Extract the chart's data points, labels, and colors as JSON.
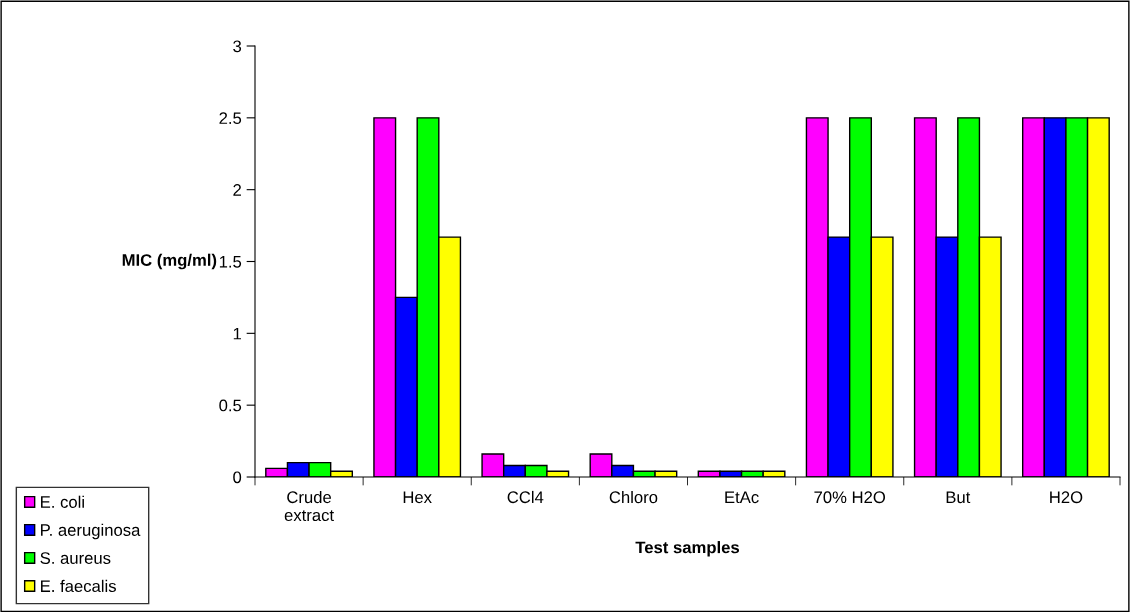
{
  "chart_data": {
    "type": "bar",
    "xlabel": "Test samples",
    "ylabel": "MIC (mg/ml)",
    "categories": [
      "Crude\nextract",
      "Hex",
      "CCl4",
      "Chloro",
      "EtAc",
      "70% H2O",
      "But",
      "H2O"
    ],
    "series": [
      {
        "name": "E. coli",
        "color": "#ff00ff",
        "values": [
          0.06,
          2.5,
          0.16,
          0.16,
          0.04,
          2.5,
          2.5,
          2.5
        ]
      },
      {
        "name": "P. aeruginosa",
        "color": "#0000ff",
        "values": [
          0.1,
          1.25,
          0.08,
          0.08,
          0.04,
          1.67,
          1.67,
          2.5
        ]
      },
      {
        "name": "S. aureus",
        "color": "#00ff00",
        "values": [
          0.1,
          2.5,
          0.08,
          0.04,
          0.04,
          2.5,
          2.5,
          2.5
        ]
      },
      {
        "name": "E. faecalis",
        "color": "#ffff00",
        "values": [
          0.04,
          1.67,
          0.04,
          0.04,
          0.04,
          1.67,
          1.67,
          2.5
        ]
      }
    ],
    "ylim": [
      0,
      3
    ],
    "yticks": [
      0,
      0.5,
      1,
      1.5,
      2,
      2.5,
      3
    ],
    "grid": false,
    "legend": "bottom left"
  }
}
